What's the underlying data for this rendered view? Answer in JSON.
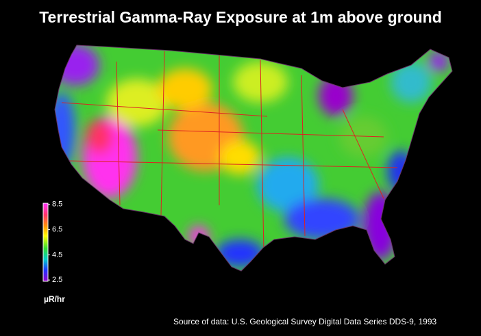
{
  "title": "Terrestrial Gamma-Ray Exposure at 1m above ground",
  "legend": {
    "ticks": [
      8.5,
      6.5,
      4.5,
      2.5
    ],
    "range": [
      2.4,
      8.6
    ],
    "unit": "µR/hr"
  },
  "source": "Source of data:  U.S. Geological Survey Digital Data Series DDS-9, 1993"
}
